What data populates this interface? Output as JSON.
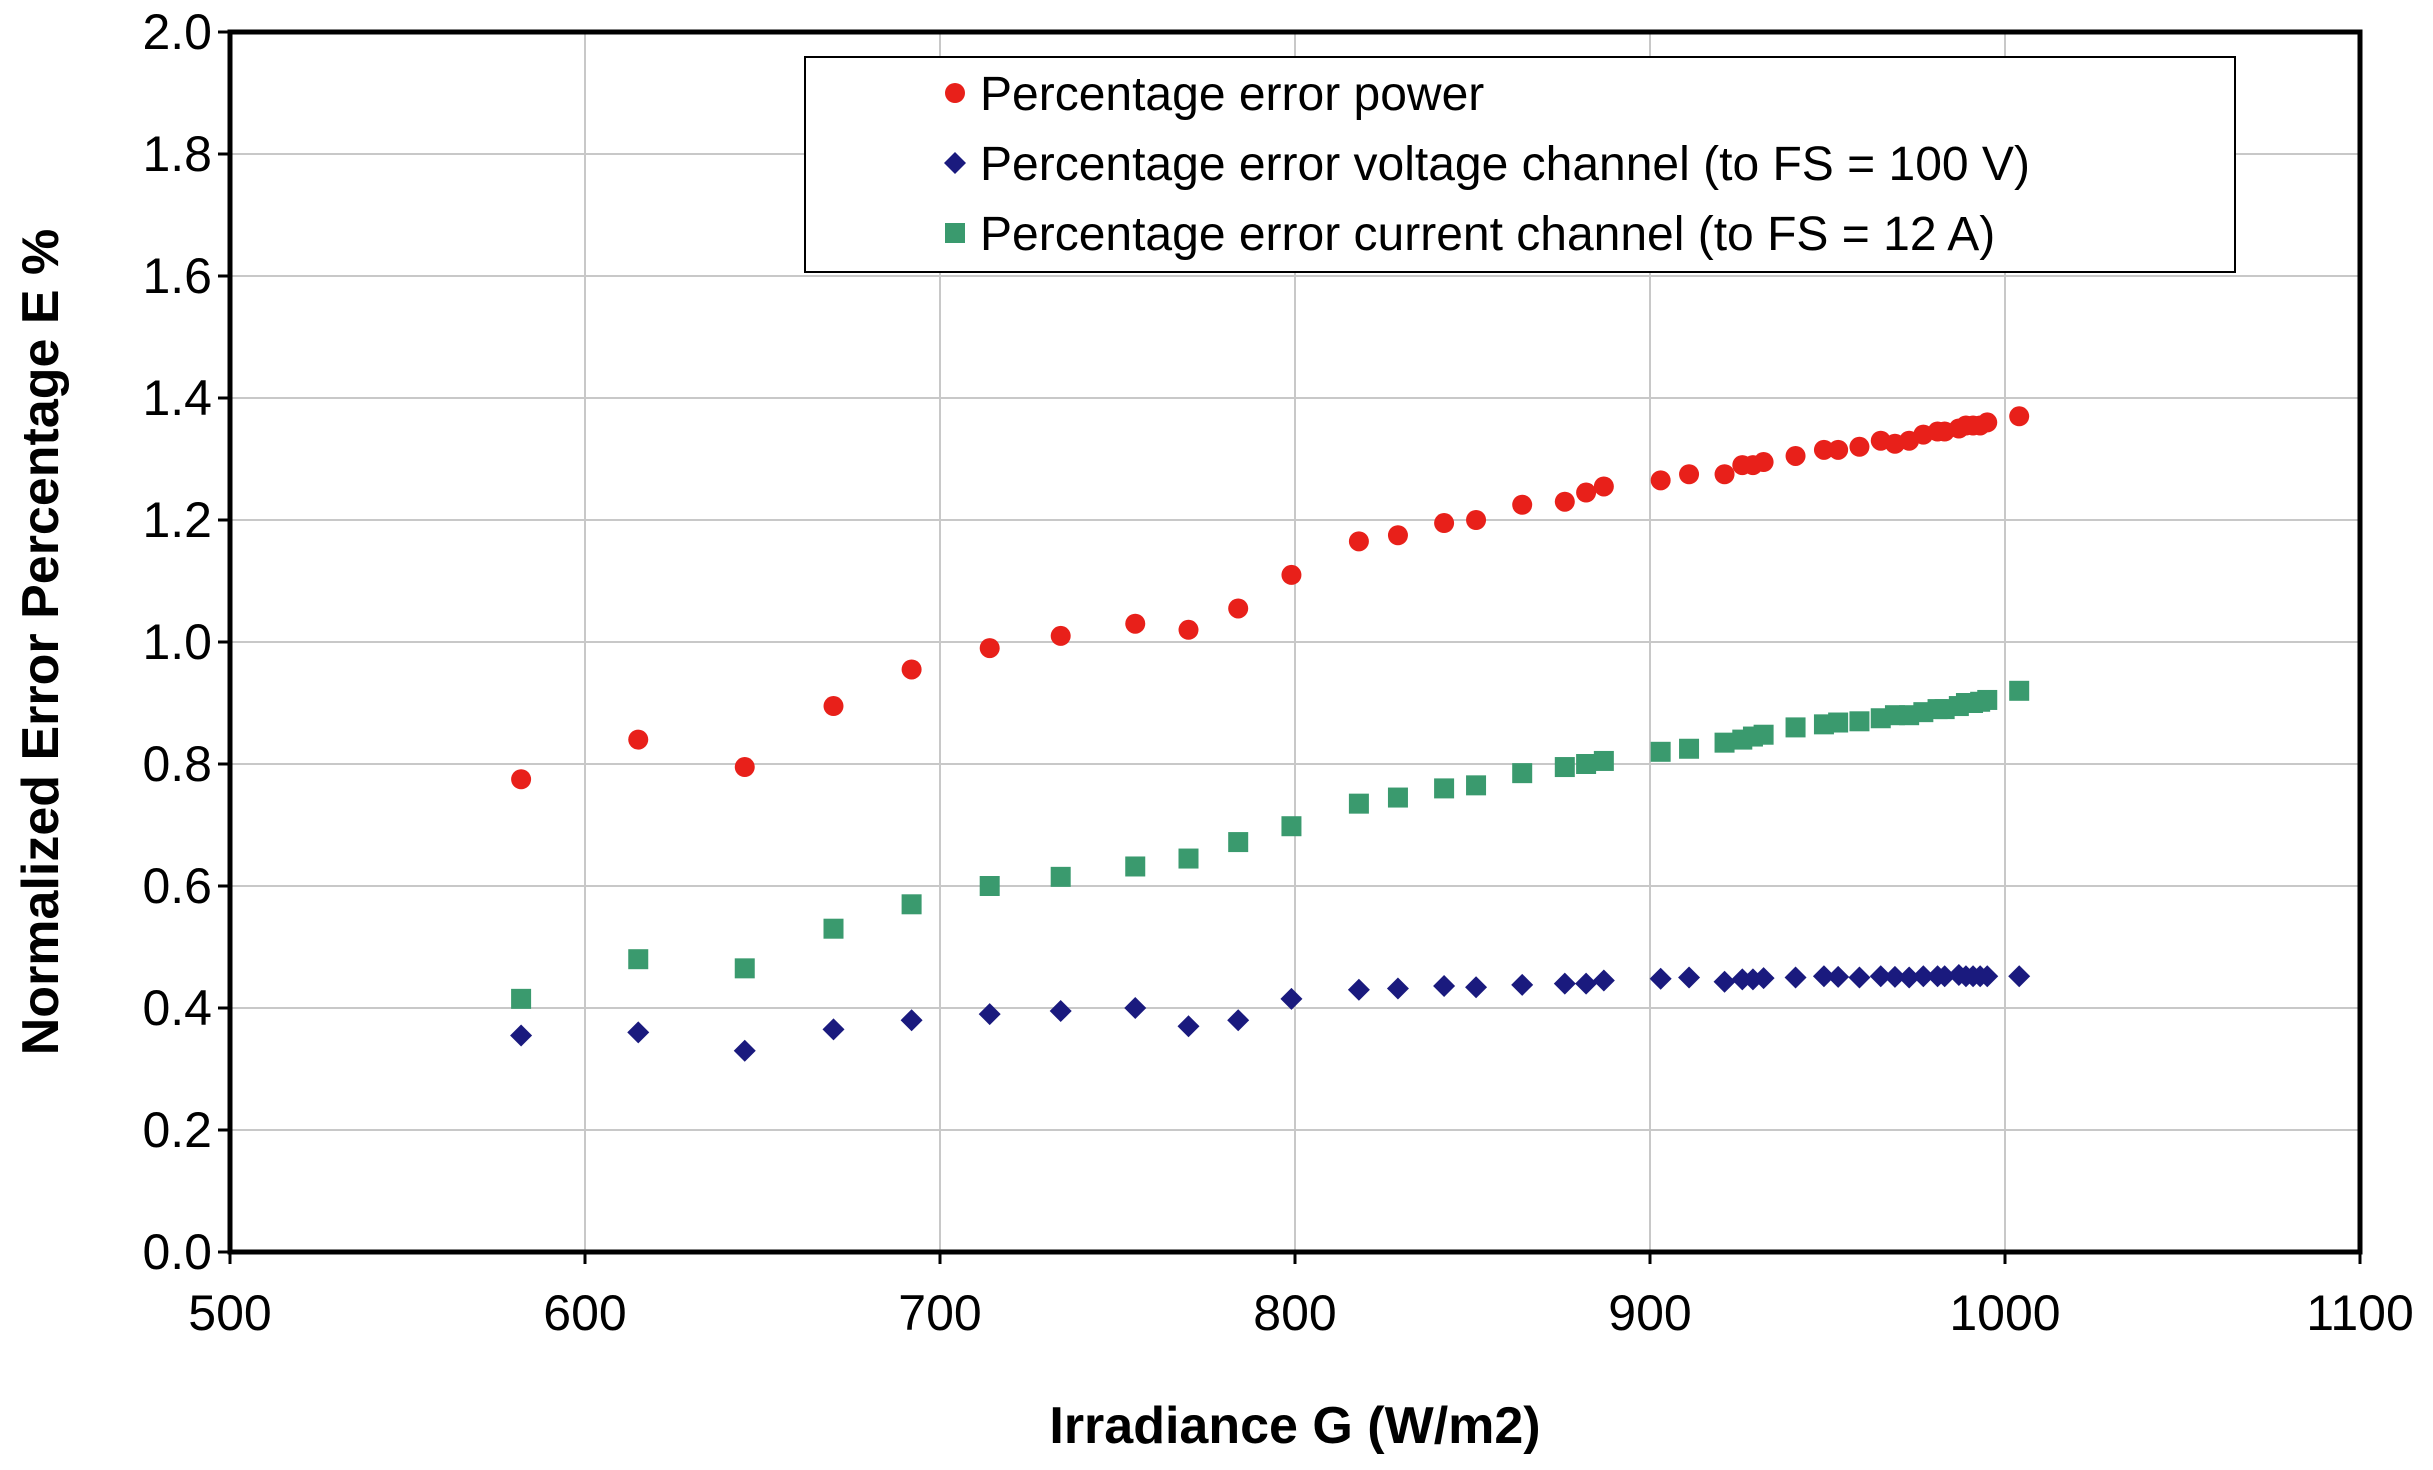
{
  "chart_data": {
    "type": "scatter",
    "title": "",
    "xlabel": "Irradiance G (W/m2)",
    "ylabel": "Normalized Error Percentage E %",
    "xlim": [
      500,
      1100
    ],
    "ylim": [
      0.0,
      2.0
    ],
    "xticks": [
      500,
      600,
      700,
      800,
      900,
      1000,
      1100
    ],
    "yticks": [
      0.0,
      0.2,
      0.4,
      0.6,
      0.8,
      1.0,
      1.2,
      1.4,
      1.6,
      1.8,
      2.0
    ],
    "xtick_labels": [
      "500",
      "600",
      "700",
      "800",
      "900",
      "1000",
      "1100"
    ],
    "ytick_labels": [
      "0.0",
      "0.2",
      "0.4",
      "0.6",
      "0.8",
      "1.0",
      "1.2",
      "1.4",
      "1.6",
      "1.8",
      "2.0"
    ],
    "grid": true,
    "legend_position": "top-right",
    "x": [
      582,
      615,
      645,
      670,
      692,
      714,
      734,
      755,
      770,
      784,
      799,
      818,
      829,
      842,
      851,
      864,
      876,
      882,
      887,
      903,
      911,
      921,
      926,
      929,
      932,
      941,
      949,
      953,
      959,
      965,
      969,
      973,
      977,
      981,
      983,
      987,
      989,
      991,
      993,
      995,
      1004
    ],
    "series": [
      {
        "name": "Percentage error power",
        "marker": "circle",
        "color": "#e8201a",
        "values": [
          0.775,
          0.84,
          0.795,
          0.895,
          0.955,
          0.99,
          1.01,
          1.03,
          1.02,
          1.055,
          1.11,
          1.165,
          1.175,
          1.195,
          1.2,
          1.225,
          1.23,
          1.245,
          1.255,
          1.265,
          1.275,
          1.275,
          1.29,
          1.29,
          1.295,
          1.305,
          1.315,
          1.315,
          1.32,
          1.33,
          1.325,
          1.33,
          1.34,
          1.345,
          1.345,
          1.35,
          1.355,
          1.355,
          1.355,
          1.36,
          1.37
        ]
      },
      {
        "name": "Percentage error voltage channel (to FS = 100 V)",
        "marker": "diamond",
        "color": "#1a1a7e",
        "values": [
          0.355,
          0.36,
          0.33,
          0.365,
          0.38,
          0.39,
          0.395,
          0.4,
          0.37,
          0.38,
          0.415,
          0.43,
          0.432,
          0.436,
          0.434,
          0.438,
          0.44,
          0.44,
          0.445,
          0.448,
          0.45,
          0.443,
          0.447,
          0.447,
          0.449,
          0.45,
          0.452,
          0.451,
          0.45,
          0.452,
          0.451,
          0.45,
          0.452,
          0.452,
          0.452,
          0.454,
          0.452,
          0.452,
          0.452,
          0.452,
          0.452
        ]
      },
      {
        "name": "Percentage error current channel (to FS = 12 A)",
        "marker": "square",
        "color": "#3a9a6e",
        "values": [
          0.415,
          0.48,
          0.465,
          0.53,
          0.57,
          0.6,
          0.615,
          0.632,
          0.645,
          0.672,
          0.698,
          0.735,
          0.745,
          0.76,
          0.765,
          0.785,
          0.795,
          0.8,
          0.805,
          0.82,
          0.825,
          0.835,
          0.84,
          0.845,
          0.848,
          0.86,
          0.865,
          0.868,
          0.87,
          0.875,
          0.88,
          0.88,
          0.885,
          0.89,
          0.89,
          0.895,
          0.9,
          0.9,
          0.902,
          0.905,
          0.92
        ]
      }
    ]
  }
}
